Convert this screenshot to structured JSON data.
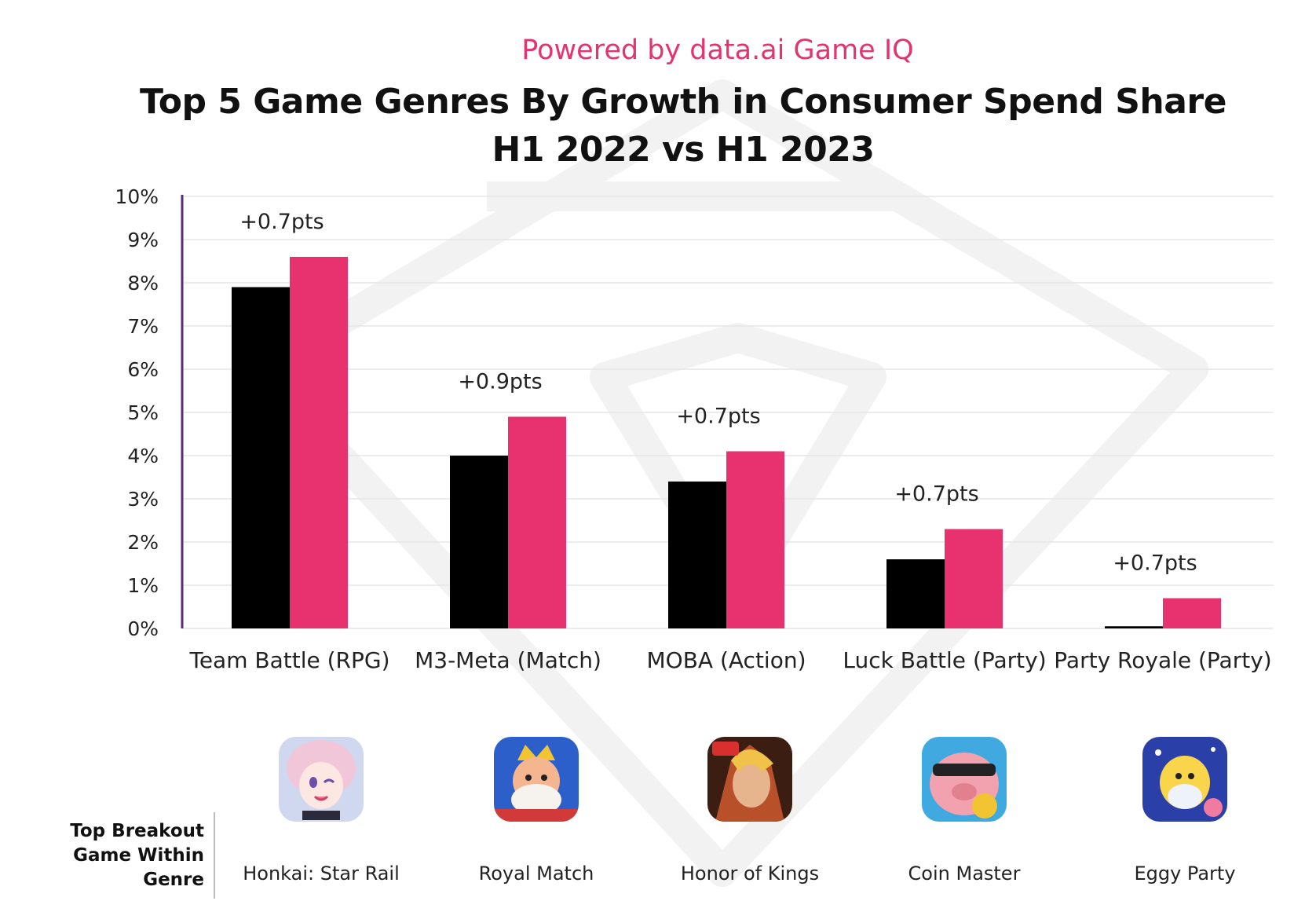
{
  "header": {
    "powered_by": "Powered by data.ai Game IQ",
    "title_line1": "Top 5 Game Genres By Growth in Consumer Spend Share",
    "title_line2": "H1 2022 vs H1 2023"
  },
  "colors": {
    "h1_2022": "#000000",
    "h1_2023": "#e8326f",
    "brand_pink": "#e33472",
    "gridline": "#e6e6e6",
    "axis": "#5b2a78"
  },
  "chart_data": {
    "type": "bar",
    "title": "Top 5 Game Genres By Growth in Consumer Spend Share H1 2022 vs H1 2023",
    "categories": [
      "Team Battle (RPG)",
      "M3-Meta (Match)",
      "MOBA (Action)",
      "Luck Battle (Party)",
      "Party Royale (Party)"
    ],
    "series": [
      {
        "values": [
          7.9,
          4.0,
          3.4,
          1.6,
          0.05
        ]
      },
      {
        "values": [
          8.6,
          4.9,
          4.1,
          2.3,
          0.7
        ]
      }
    ],
    "annotations": [
      "+0.7pts",
      "+0.9pts",
      "+0.7pts",
      "+0.7pts",
      "+0.7pts"
    ],
    "ylim": [
      0,
      10
    ],
    "yticks": [
      "0%",
      "1%",
      "2%",
      "3%",
      "4%",
      "5%",
      "6%",
      "7%",
      "8%",
      "9%",
      "10%"
    ],
    "grid": true
  },
  "breakout": {
    "label_line1": "Top Breakout",
    "label_line2": "Game Within",
    "label_line3": "Genre",
    "games": [
      {
        "name": "Honkai: Star Rail",
        "icon": "honkai-star-rail-app-icon"
      },
      {
        "name": "Royal Match",
        "icon": "royal-match-app-icon"
      },
      {
        "name": "Honor of Kings",
        "icon": "honor-of-kings-app-icon"
      },
      {
        "name": "Coin Master",
        "icon": "coin-master-app-icon"
      },
      {
        "name": "Eggy Party",
        "icon": "eggy-party-app-icon"
      }
    ]
  }
}
